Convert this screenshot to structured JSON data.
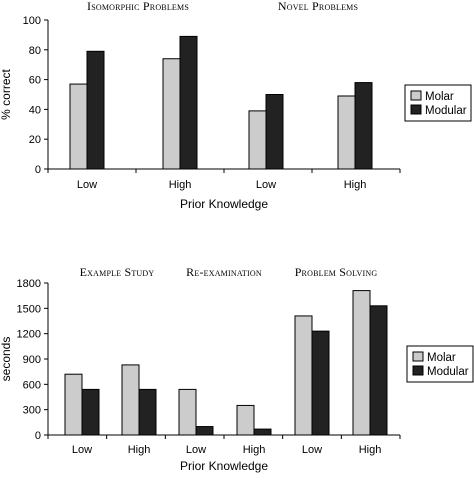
{
  "chart_data": [
    {
      "type": "bar",
      "ylabel": "% correct",
      "xlabel": "Prior Knowledge",
      "ylim": [
        0,
        100
      ],
      "yticks": [
        0,
        20,
        40,
        60,
        80,
        100
      ],
      "categories": [
        "Low",
        "High",
        "Low",
        "High"
      ],
      "group_titles": [
        "Isomorphic Problems",
        "Novel Problems"
      ],
      "series": [
        {
          "name": "Molar",
          "color": "#cccccc",
          "values": [
            57,
            74,
            39,
            49
          ]
        },
        {
          "name": "Modular",
          "color": "#222222",
          "values": [
            79,
            89,
            50,
            58
          ]
        }
      ],
      "legend": "right",
      "grid": false
    },
    {
      "type": "bar",
      "ylabel": "seconds",
      "xlabel": "Prior Knowledge",
      "ylim": [
        0,
        1800
      ],
      "yticks": [
        0,
        300,
        600,
        900,
        1200,
        1500,
        1800
      ],
      "categories": [
        "Low",
        "High",
        "Low",
        "High",
        "Low",
        "High"
      ],
      "group_titles": [
        "Example Study",
        "Re-examination",
        "Problem Solving"
      ],
      "series": [
        {
          "name": "Molar",
          "color": "#cccccc",
          "values": [
            720,
            830,
            540,
            350,
            1410,
            1710
          ]
        },
        {
          "name": "Modular",
          "color": "#222222",
          "values": [
            540,
            540,
            100,
            70,
            1230,
            1530
          ]
        }
      ],
      "legend": "right",
      "grid": false
    }
  ]
}
